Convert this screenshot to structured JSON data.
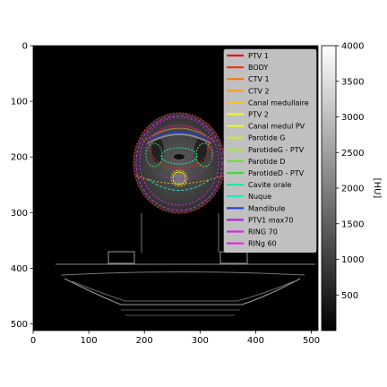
{
  "chart_data": {
    "type": "heatmap",
    "title": "",
    "xlabel": "",
    "ylabel": "",
    "xlim": [
      0,
      512
    ],
    "ylim": [
      512,
      0
    ],
    "x_ticks": [
      0,
      100,
      200,
      300,
      400,
      500
    ],
    "y_ticks": [
      0,
      100,
      200,
      300,
      400,
      500
    ],
    "colorbar": {
      "label": "[HU]",
      "range": [
        0,
        4000
      ],
      "ticks": [
        500,
        1000,
        1500,
        2000,
        2500,
        3000,
        3500,
        4000
      ]
    },
    "legend_position": "upper-right",
    "contours": [
      {
        "name": "PTV 1",
        "color": "#e8141c"
      },
      {
        "name": "BODY",
        "color": "#e43b1e"
      },
      {
        "name": "CTV 1",
        "color": "#ee7a1d"
      },
      {
        "name": "CTV 2",
        "color": "#f0a020"
      },
      {
        "name": "Canal medullaire",
        "color": "#f5c52a"
      },
      {
        "name": "PTV 2",
        "color": "#f7ee2e"
      },
      {
        "name": "Canal medul PV",
        "color": "#e5f240"
      },
      {
        "name": "Parotide G",
        "color": "#c7ee3d"
      },
      {
        "name": "ParotideG - PTV",
        "color": "#9aea3a"
      },
      {
        "name": "Parotide D",
        "color": "#6ee13a"
      },
      {
        "name": "ParotideD - PTV",
        "color": "#3fd93c"
      },
      {
        "name": "Cavite orale",
        "color": "#25e69a"
      },
      {
        "name": "Nuque",
        "color": "#1fe8c0"
      },
      {
        "name": "Mandibule",
        "color": "#2040d8"
      },
      {
        "name": "PTV1 max70",
        "color": "#b024d8"
      },
      {
        "name": "RING 70",
        "color": "#cc2ce0"
      },
      {
        "name": "RINg 60",
        "color": "#e02ce0"
      }
    ]
  }
}
